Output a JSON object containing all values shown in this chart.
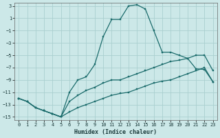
{
  "xlabel": "Humidex (Indice chaleur)",
  "background_color": "#cce8e8",
  "grid_color": "#aacfcf",
  "line_color": "#1a6b6b",
  "xlim": [
    -0.5,
    23.5
  ],
  "ylim": [
    -15.5,
    3.5
  ],
  "yticks": [
    3,
    1,
    -1,
    -3,
    -5,
    -7,
    -9,
    -11,
    -13,
    -15
  ],
  "xticks": [
    0,
    1,
    2,
    3,
    4,
    5,
    6,
    7,
    8,
    9,
    10,
    11,
    12,
    13,
    14,
    15,
    16,
    17,
    18,
    19,
    20,
    21,
    22,
    23
  ],
  "line_main_x": [
    0,
    1,
    2,
    3,
    4,
    5,
    6,
    7,
    8,
    9,
    10,
    11,
    12,
    13,
    14,
    15,
    16,
    17,
    18,
    19,
    20,
    21,
    22,
    23
  ],
  "line_main_y": [
    -12,
    -12.5,
    -13.5,
    -14,
    -14.5,
    -15,
    -11,
    -9,
    -8.5,
    -6.5,
    -2,
    0.8,
    0.8,
    3.0,
    3.2,
    2.5,
    -1.0,
    -4.5,
    -4.5,
    -5.0,
    -5.5,
    -7.2,
    -7.3,
    -9.3
  ],
  "line_mid_x": [
    0,
    1,
    2,
    3,
    4,
    5,
    6,
    7,
    8,
    9,
    10,
    11,
    12,
    13,
    14,
    15,
    16,
    17,
    18,
    19,
    20,
    21,
    22,
    23
  ],
  "line_mid_y": [
    -12,
    -12.5,
    -13.5,
    -14,
    -14.5,
    -15,
    -12.5,
    -11.5,
    -10.7,
    -10.2,
    -9.5,
    -9.0,
    -9.0,
    -8.5,
    -8.0,
    -7.5,
    -7.0,
    -6.5,
    -6.0,
    -5.8,
    -5.5,
    -5.0,
    -5.0,
    -7.5
  ],
  "line_low_x": [
    0,
    1,
    2,
    3,
    4,
    5,
    6,
    7,
    8,
    9,
    10,
    11,
    12,
    13,
    14,
    15,
    16,
    17,
    18,
    19,
    20,
    21,
    22,
    23
  ],
  "line_low_y": [
    -12,
    -12.5,
    -13.5,
    -14,
    -14.5,
    -15,
    -14.2,
    -13.5,
    -13.0,
    -12.5,
    -12.0,
    -11.5,
    -11.2,
    -11.0,
    -10.5,
    -10.0,
    -9.5,
    -9.2,
    -9.0,
    -8.5,
    -8.0,
    -7.5,
    -7.0,
    -9.3
  ]
}
